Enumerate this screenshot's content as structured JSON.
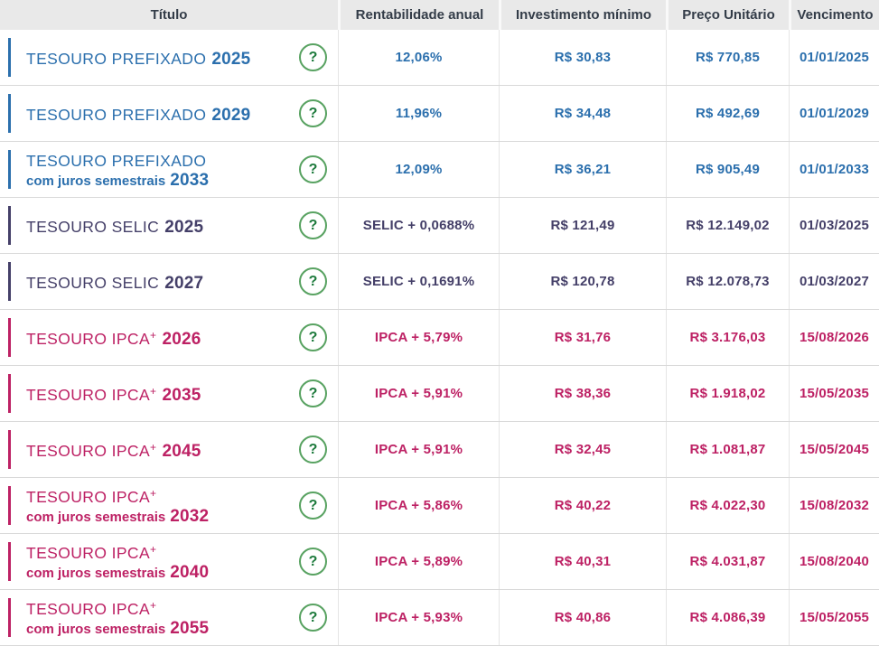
{
  "colors": {
    "prefixado": "#2b6fad",
    "selic": "#443f68",
    "ipca": "#bd2164",
    "help_border": "#58a261",
    "help_glyph": "#1d7a3c",
    "header_bg": "#e9e9e9",
    "header_text": "#333c48",
    "row_divider": "#d9d9d9"
  },
  "table": {
    "help_label": "?",
    "columns": [
      "Título",
      "Rentabilidade anual",
      "Investimento mínimo",
      "Preço Unitário",
      "Vencimento"
    ],
    "rows": [
      {
        "type": "prefixado",
        "title": "TESOURO PREFIXADO",
        "title_sup": "",
        "title_year": "2025",
        "subtitle": "",
        "subtitle_year": "",
        "rate": "12,06%",
        "min_investment": "R$ 30,83",
        "unit_price": "R$ 770,85",
        "maturity": "01/01/2025"
      },
      {
        "type": "prefixado",
        "title": "TESOURO PREFIXADO",
        "title_sup": "",
        "title_year": "2029",
        "subtitle": "",
        "subtitle_year": "",
        "rate": "11,96%",
        "min_investment": "R$ 34,48",
        "unit_price": "R$ 492,69",
        "maturity": "01/01/2029"
      },
      {
        "type": "prefixado",
        "title": "TESOURO PREFIXADO",
        "title_sup": "",
        "title_year": "",
        "subtitle": "com juros semestrais",
        "subtitle_year": "2033",
        "rate": "12,09%",
        "min_investment": "R$ 36,21",
        "unit_price": "R$ 905,49",
        "maturity": "01/01/2033"
      },
      {
        "type": "selic",
        "title": "TESOURO SELIC",
        "title_sup": "",
        "title_year": "2025",
        "subtitle": "",
        "subtitle_year": "",
        "rate": "SELIC + 0,0688%",
        "min_investment": "R$ 121,49",
        "unit_price": "R$ 12.149,02",
        "maturity": "01/03/2025"
      },
      {
        "type": "selic",
        "title": "TESOURO SELIC",
        "title_sup": "",
        "title_year": "2027",
        "subtitle": "",
        "subtitle_year": "",
        "rate": "SELIC + 0,1691%",
        "min_investment": "R$ 120,78",
        "unit_price": "R$ 12.078,73",
        "maturity": "01/03/2027"
      },
      {
        "type": "ipca",
        "title": "TESOURO IPCA",
        "title_sup": "+",
        "title_year": "2026",
        "subtitle": "",
        "subtitle_year": "",
        "rate": "IPCA + 5,79%",
        "min_investment": "R$ 31,76",
        "unit_price": "R$ 3.176,03",
        "maturity": "15/08/2026"
      },
      {
        "type": "ipca",
        "title": "TESOURO IPCA",
        "title_sup": "+",
        "title_year": "2035",
        "subtitle": "",
        "subtitle_year": "",
        "rate": "IPCA + 5,91%",
        "min_investment": "R$ 38,36",
        "unit_price": "R$ 1.918,02",
        "maturity": "15/05/2035"
      },
      {
        "type": "ipca",
        "title": "TESOURO IPCA",
        "title_sup": "+",
        "title_year": "2045",
        "subtitle": "",
        "subtitle_year": "",
        "rate": "IPCA + 5,91%",
        "min_investment": "R$ 32,45",
        "unit_price": "R$ 1.081,87",
        "maturity": "15/05/2045"
      },
      {
        "type": "ipca",
        "title": "TESOURO IPCA",
        "title_sup": "+",
        "title_year": "",
        "subtitle": "com juros semestrais",
        "subtitle_year": "2032",
        "rate": "IPCA + 5,86%",
        "min_investment": "R$ 40,22",
        "unit_price": "R$ 4.022,30",
        "maturity": "15/08/2032"
      },
      {
        "type": "ipca",
        "title": "TESOURO IPCA",
        "title_sup": "+",
        "title_year": "",
        "subtitle": "com juros semestrais",
        "subtitle_year": "2040",
        "rate": "IPCA + 5,89%",
        "min_investment": "R$ 40,31",
        "unit_price": "R$ 4.031,87",
        "maturity": "15/08/2040"
      },
      {
        "type": "ipca",
        "title": "TESOURO IPCA",
        "title_sup": "+",
        "title_year": "",
        "subtitle": "com juros semestrais",
        "subtitle_year": "2055",
        "rate": "IPCA + 5,93%",
        "min_investment": "R$ 40,86",
        "unit_price": "R$ 4.086,39",
        "maturity": "15/05/2055"
      }
    ]
  }
}
